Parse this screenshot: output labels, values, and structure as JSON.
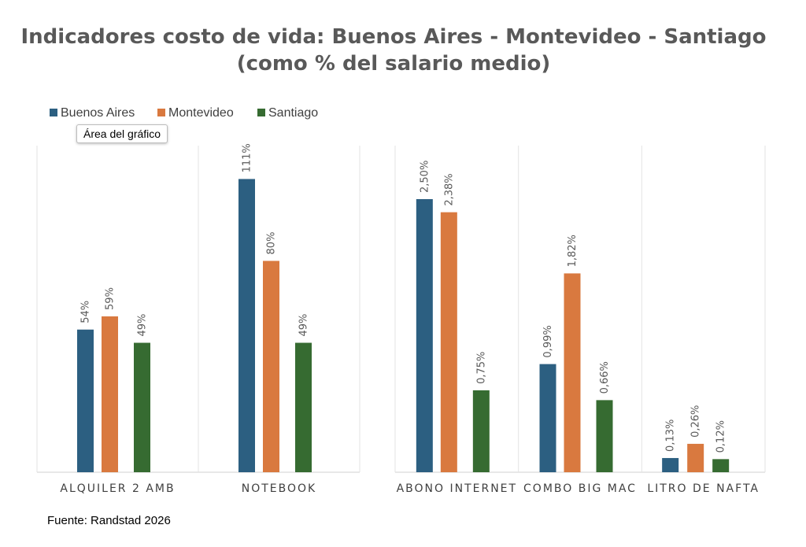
{
  "chart_data": {
    "type": "bar",
    "title_lines": [
      "Indicadores costo de vida: Buenos Aires - Montevideo - Santiago",
      "(como % del salario medio)"
    ],
    "legend_position": "top-left",
    "grid": false,
    "series": [
      {
        "name": "Buenos Aires",
        "color": "#2c5f81"
      },
      {
        "name": "Montevideo",
        "color": "#d9793f"
      },
      {
        "name": "Santiago",
        "color": "#366b31"
      }
    ],
    "panels": [
      {
        "ylim": [
          0,
          115
        ],
        "categories": [
          {
            "label": "ALQUILER 2 AMB",
            "values": [
              54,
              59,
              49
            ],
            "labels": [
              "54%",
              "59%",
              "49%"
            ]
          },
          {
            "label": "NOTEBOOK",
            "values": [
              111,
              80,
              49
            ],
            "labels": [
              "111%",
              "80%",
              "49%"
            ]
          }
        ]
      },
      {
        "ylim": [
          0,
          2.6
        ],
        "categories": [
          {
            "label": "ABONO INTERNET",
            "values": [
              2.5,
              2.38,
              0.75
            ],
            "labels": [
              "2,50%",
              "2,38%",
              "0,75%"
            ]
          },
          {
            "label": "COMBO BIG MAC",
            "values": [
              0.99,
              1.82,
              0.66
            ],
            "labels": [
              "0,99%",
              "1,82%",
              "0,66%"
            ]
          },
          {
            "label": "LITRO DE NAFTA",
            "values": [
              0.13,
              0.26,
              0.12
            ],
            "labels": [
              "0,13%",
              "0,26%",
              "0,12%"
            ]
          }
        ]
      }
    ],
    "source": "Fuente: Randstad 2026"
  },
  "tooltip": {
    "text": "Área del gráfico"
  }
}
